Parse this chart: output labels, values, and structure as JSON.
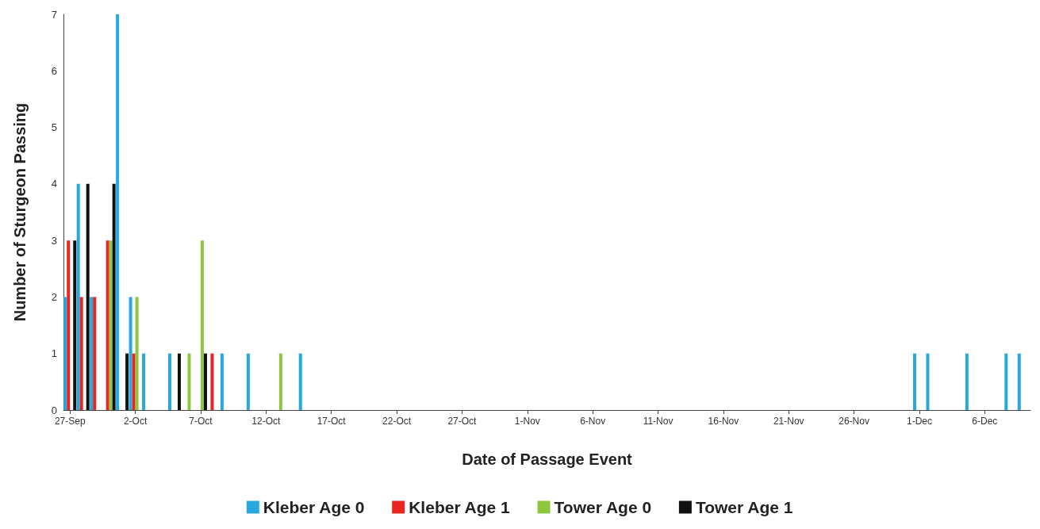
{
  "chart_data": {
    "type": "bar",
    "xlabel": "Date of Passage Event",
    "ylabel": "Number of Sturgeon Passing",
    "xlim": [
      "--09-26T12:00",
      "--12-09T12:00"
    ],
    "xticks": [
      {
        "value": "--09-27",
        "label": "27-Sep"
      },
      {
        "value": "--10-02",
        "label": "2-Oct"
      },
      {
        "value": "--10-07",
        "label": "7-Oct"
      },
      {
        "value": "--10-12",
        "label": "12-Oct"
      },
      {
        "value": "--10-17",
        "label": "17-Oct"
      },
      {
        "value": "--10-22",
        "label": "22-Oct"
      },
      {
        "value": "--10-27",
        "label": "27-Oct"
      },
      {
        "value": "--11-01",
        "label": "1-Nov"
      },
      {
        "value": "--11-06",
        "label": "6-Nov"
      },
      {
        "value": "--11-11",
        "label": "11-Nov"
      },
      {
        "value": "--11-16",
        "label": "16-Nov"
      },
      {
        "value": "--11-21",
        "label": "21-Nov"
      },
      {
        "value": "--11-26",
        "label": "26-Nov"
      },
      {
        "value": "--12-01",
        "label": "1-Dec"
      },
      {
        "value": "--12-06",
        "label": "6-Dec"
      }
    ],
    "ylim": [
      0,
      7
    ],
    "yticks": [
      0,
      1,
      2,
      3,
      4,
      5,
      6,
      7
    ],
    "grid": false,
    "legend": "bottom",
    "series": [
      {
        "name": "Kleber Age 0",
        "color": "#29a8e0",
        "x": [
          "--09-27",
          "--09-28",
          "--09-29",
          "--10-01",
          "--10-02",
          "--10-03",
          "--10-05",
          "--10-09",
          "--10-11",
          "--10-15",
          "--12-01",
          "--12-02",
          "--12-05",
          "--12-08",
          "--12-09"
        ],
        "values": [
          2,
          4,
          2,
          7,
          2,
          1,
          1,
          1,
          1,
          1,
          1,
          1,
          1,
          1,
          1
        ]
      },
      {
        "name": "Kleber Age 1",
        "color": "#e8251f",
        "x": [
          "--09-27",
          "--09-28",
          "--09-29",
          "--09-30",
          "--10-02",
          "--10-08"
        ],
        "values": [
          3,
          2,
          2,
          3,
          1,
          1
        ]
      },
      {
        "name": "Tower Age 0",
        "color": "#8dc63f",
        "x": [
          "--09-30",
          "--10-02",
          "--10-06",
          "--10-07",
          "--10-13"
        ],
        "values": [
          3,
          2,
          1,
          3,
          1
        ]
      },
      {
        "name": "Tower Age 1",
        "color": "#111111",
        "x": [
          "--09-27",
          "--09-28",
          "--09-30",
          "--10-01",
          "--10-05",
          "--10-07"
        ],
        "values": [
          3,
          4,
          4,
          1,
          1,
          1
        ]
      }
    ]
  }
}
